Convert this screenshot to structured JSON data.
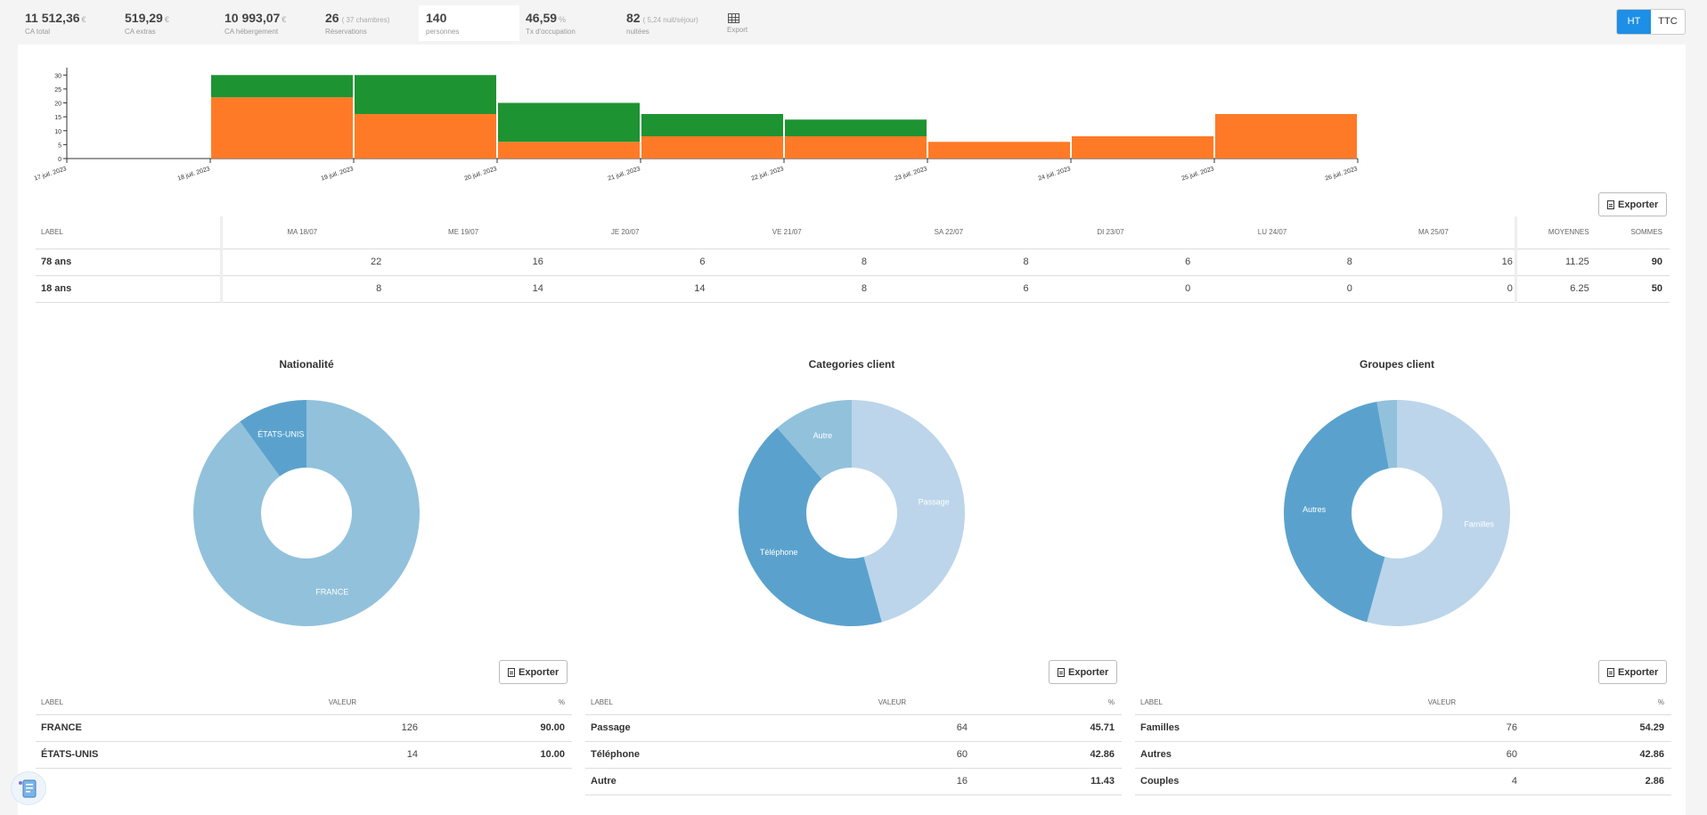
{
  "kpis": [
    {
      "value": "11 512,36",
      "unit": "€",
      "sub": "",
      "label": "CA total"
    },
    {
      "value": "519,29",
      "unit": "€",
      "sub": "",
      "label": "CA extras"
    },
    {
      "value": "10 993,07",
      "unit": "€",
      "sub": "",
      "label": "CA hébergement"
    },
    {
      "value": "26",
      "unit": "",
      "sub": "( 37 chambres)",
      "label": "Réservations"
    },
    {
      "value": "140",
      "unit": "",
      "sub": "",
      "label": "personnes"
    },
    {
      "value": "46,59",
      "unit": "%",
      "sub": "",
      "label": "Tx d'occupation"
    },
    {
      "value": "82",
      "unit": "",
      "sub": "( 5,24 nuit/séjour)",
      "label": "nuitées"
    }
  ],
  "export_kpi_label": "Export",
  "toggle": {
    "ht": "HT",
    "ttc": "TTC"
  },
  "export_label": "Exporter",
  "chart_data": {
    "type": "bar",
    "stacked": true,
    "categories": [
      "18 juil. 2023",
      "19 juil. 2023",
      "20 juil. 2023",
      "21 juil. 2023",
      "22 juil. 2023",
      "23 juil. 2023",
      "24 juil. 2023",
      "25 juil. 2023"
    ],
    "x_ticks": [
      "17 juil. 2023",
      "18 juil. 2023",
      "19 juil. 2023",
      "20 juil. 2023",
      "21 juil. 2023",
      "22 juil. 2023",
      "23 juil. 2023",
      "24 juil. 2023",
      "25 juil. 2023",
      "26 juil. 2023"
    ],
    "series": [
      {
        "name": "78 ans",
        "color": "#ff7a26",
        "values": [
          22,
          16,
          6,
          8,
          8,
          6,
          8,
          16
        ]
      },
      {
        "name": "18 ans",
        "color": "#1e9332",
        "values": [
          8,
          14,
          14,
          8,
          6,
          0,
          0,
          0
        ]
      }
    ],
    "ylim": [
      0,
      32
    ],
    "y_ticks": [
      0,
      5,
      10,
      15,
      20,
      25,
      30
    ]
  },
  "table": {
    "headers": {
      "label": "LABEL",
      "days": [
        "MA 18/07",
        "ME 19/07",
        "JE 20/07",
        "VE 21/07",
        "SA 22/07",
        "DI 23/07",
        "LU 24/07",
        "MA 25/07"
      ],
      "avg": "MOYENNES",
      "sum": "SOMMES"
    },
    "rows": [
      {
        "label": "78 ans",
        "values": [
          "22",
          "16",
          "6",
          "8",
          "8",
          "6",
          "8",
          "16"
        ],
        "avg": "11.25",
        "sum": "90"
      },
      {
        "label": "18 ans",
        "values": [
          "8",
          "14",
          "14",
          "8",
          "6",
          "0",
          "0",
          "0"
        ],
        "avg": "6.25",
        "sum": "50"
      }
    ]
  },
  "pies": [
    {
      "title": "Nationalité",
      "headers": {
        "label": "LABEL",
        "value": "VALEUR",
        "pct": "%"
      },
      "slices": [
        {
          "label": "FRANCE",
          "value": 126,
          "pct": "90.00",
          "color": "#92c1dc",
          "text": "FRANCE"
        },
        {
          "label": "ÉTATS-UNIS",
          "value": 14,
          "pct": "10.00",
          "color": "#5aa2cd",
          "text": "ÉTATS-UNIS"
        }
      ]
    },
    {
      "title": "Categories client",
      "headers": {
        "label": "LABEL",
        "value": "VALEUR",
        "pct": "%"
      },
      "slices": [
        {
          "label": "Passage",
          "value": 64,
          "pct": "45.71",
          "color": "#bcd5ea",
          "text": "Passage"
        },
        {
          "label": "Téléphone",
          "value": 60,
          "pct": "42.86",
          "color": "#5aa2cd",
          "text": "Téléphone"
        },
        {
          "label": "Autre",
          "value": 16,
          "pct": "11.43",
          "color": "#92c1dc",
          "text": "Autre"
        }
      ]
    },
    {
      "title": "Groupes client",
      "headers": {
        "label": "LABEL",
        "value": "VALEUR",
        "pct": "%"
      },
      "slices": [
        {
          "label": "Familles",
          "value": 76,
          "pct": "54.29",
          "color": "#bcd5ea",
          "text": "Familles"
        },
        {
          "label": "Autres",
          "value": 60,
          "pct": "42.86",
          "color": "#5aa2cd",
          "text": "Autres"
        },
        {
          "label": "Couples",
          "value": 4,
          "pct": "2.86",
          "color": "#92c1dc",
          "text": ""
        }
      ]
    }
  ]
}
